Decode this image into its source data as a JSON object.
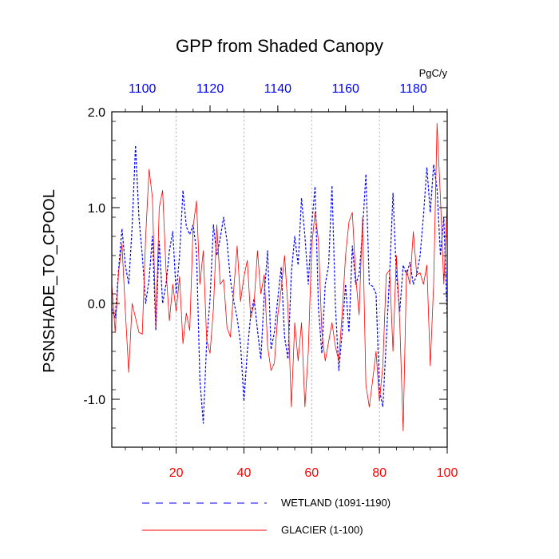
{
  "chart_data": {
    "type": "line",
    "title": "GPP from Shaded Canopy",
    "ylabel": "PSNSHADE_TO_CPOOL",
    "top_axis_units": "PgC/y",
    "xlim": [
      1,
      100
    ],
    "ylim": [
      -1.5,
      2.0
    ],
    "top_xlim": [
      1091,
      1190
    ],
    "y_ticks": [
      -1.0,
      0.0,
      1.0,
      2.0
    ],
    "y_tick_labels": [
      "-1.0",
      "0.0",
      "1.0",
      "2.0"
    ],
    "bottom_ticks": [
      20,
      40,
      60,
      80,
      100
    ],
    "bottom_tick_labels": [
      "20",
      "40",
      "60",
      "80",
      "100"
    ],
    "top_ticks": [
      1100,
      1120,
      1140,
      1160,
      1180
    ],
    "top_tick_labels": [
      "1100",
      "1120",
      "1140",
      "1160",
      "1180"
    ],
    "bottom_axis_color": "#ff0000",
    "top_axis_color": "#0000ff",
    "vertical_gridlines_at": [
      20,
      40,
      60,
      80
    ],
    "series": [
      {
        "name": "WETLAND (1091-1190)",
        "color": "#0000ff",
        "style": "dashed",
        "values": [
          -0.05,
          -0.15,
          0.35,
          0.78,
          0.4,
          0.2,
          0.8,
          1.65,
          0.9,
          0.5,
          0.0,
          0.25,
          0.7,
          -0.28,
          0.65,
          0.0,
          0.2,
          0.55,
          0.75,
          0.1,
          0.5,
          1.18,
          0.8,
          0.72,
          0.82,
          0.55,
          -0.8,
          -1.25,
          -0.4,
          0.05,
          0.82,
          0.5,
          0.68,
          0.9,
          0.65,
          0.25,
          0.02,
          -0.15,
          -0.42,
          -1.02,
          -0.5,
          -0.12,
          0.05,
          -0.28,
          -0.58,
          0.1,
          0.55,
          -0.48,
          -0.3,
          0.05,
          0.38,
          -0.35,
          -0.58,
          0.32,
          0.7,
          0.4,
          1.1,
          0.7,
          0.2,
          0.82,
          1.22,
          -0.05,
          -0.52,
          0.2,
          0.4,
          1.23,
          -0.02,
          -0.7,
          -0.3,
          0.2,
          -0.3,
          0.6,
          0.2,
          0.3,
          0.75,
          1.35,
          0.2,
          0.18,
          0.1,
          -0.9,
          -1.08,
          -0.4,
          0.3,
          1.15,
          0.3,
          -0.08,
          0.4,
          0.3,
          0.43,
          0.2,
          0.3,
          0.5,
          0.92,
          1.42,
          0.95,
          1.45,
          1.2,
          0.5,
          0.9,
          -0.15
        ]
      },
      {
        "name": "GLACIER (1-100)",
        "color": "#ff0000",
        "style": "solid",
        "values": [
          0.2,
          -0.3,
          0.32,
          0.62,
          -0.08,
          -0.72,
          0.0,
          -0.15,
          -0.3,
          -0.32,
          0.7,
          1.4,
          1.1,
          -0.25,
          1.0,
          1.18,
          0.35,
          -0.18,
          0.2,
          -0.08,
          0.28,
          -0.42,
          -0.1,
          -0.28,
          0.8,
          1.07,
          0.2,
          0.55,
          -0.38,
          -0.52,
          -0.05,
          0.82,
          0.2,
          0.25,
          -0.25,
          -0.35,
          0.15,
          0.6,
          0.02,
          0.28,
          0.45,
          -0.15,
          0.0,
          0.55,
          0.1,
          0.3,
          -0.45,
          -0.7,
          -0.62,
          -0.12,
          0.15,
          0.5,
          -0.05,
          -1.08,
          -0.2,
          -0.6,
          -0.2,
          -1.08,
          -0.5,
          0.6,
          0.95,
          0.65,
          -0.3,
          -0.6,
          -0.4,
          -0.2,
          -0.45,
          -0.6,
          -0.1,
          0.5,
          0.85,
          0.95,
          0.28,
          -0.12,
          0.9,
          -0.85,
          -1.08,
          -0.8,
          -0.5,
          -1.02,
          -0.65,
          0.3,
          0.35,
          -0.5,
          0.5,
          -0.2,
          -1.33,
          0.35,
          0.2,
          0.75,
          0.3,
          0.32,
          0.2,
          0.4,
          -0.65,
          0.2,
          1.88,
          1.1,
          0.2,
          1.05
        ]
      }
    ]
  }
}
